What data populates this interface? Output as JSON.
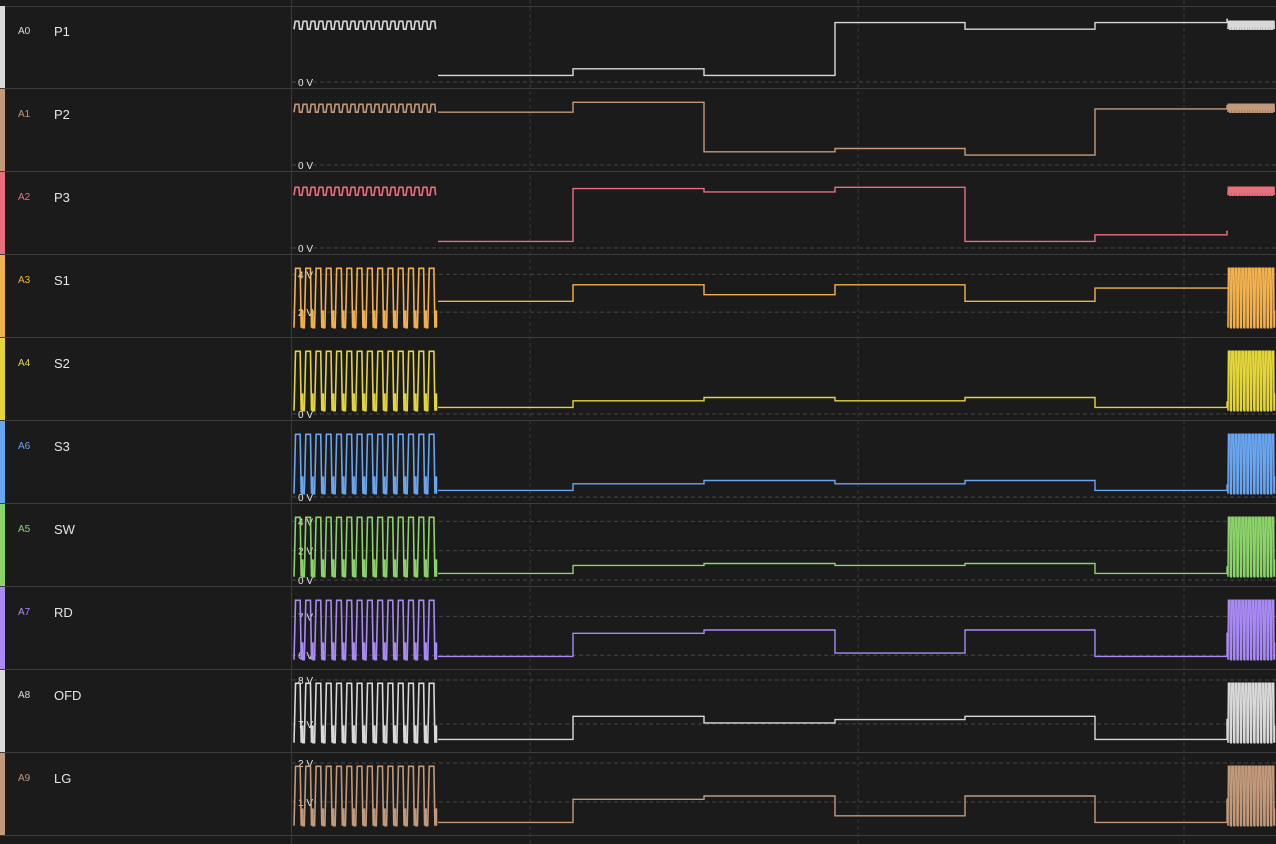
{
  "channels": [
    {
      "id": "A0",
      "name": "P1",
      "color": "#d9d9d9",
      "ticks": [
        {
          "v": 0,
          "label": "0 V"
        }
      ],
      "lo": 0.0,
      "hi": 1.0,
      "burst": "small",
      "lowLevel": -0.2
    },
    {
      "id": "A1",
      "name": "P2",
      "color": "#c29a7b",
      "ticks": [
        {
          "v": 0,
          "label": "0 V"
        }
      ],
      "lo": 0.0,
      "hi": 1.0,
      "burst": "small",
      "lowLevel": 0.0
    },
    {
      "id": "A2",
      "name": "P3",
      "color": "#e8707e",
      "ticks": [
        {
          "v": 0,
          "label": "0 V"
        }
      ],
      "lo": 0.0,
      "hi": 1.0,
      "burst": "small",
      "lowLevel": 0.0
    },
    {
      "id": "A3",
      "name": "S1",
      "color": "#f2b14f",
      "ticks": [
        {
          "v": 4,
          "label": "4 V"
        },
        {
          "v": 2,
          "label": "2 V"
        }
      ],
      "lo": 1.0,
      "hi": 4.5,
      "burst": "big",
      "lowLevel": 2.0
    },
    {
      "id": "A4",
      "name": "S2",
      "color": "#e4d53b",
      "ticks": [
        {
          "v": 0,
          "label": "0 V"
        }
      ],
      "lo": 0.0,
      "hi": 5.0,
      "burst": "big",
      "lowLevel": 0.0
    },
    {
      "id": "A6",
      "name": "S3",
      "color": "#6aa5f0",
      "ticks": [
        {
          "v": 0,
          "label": "0 V"
        }
      ],
      "lo": 0.0,
      "hi": 5.0,
      "burst": "big",
      "lowLevel": 0.0
    },
    {
      "id": "A5",
      "name": "SW",
      "color": "#8cd36a",
      "ticks": [
        {
          "v": 4,
          "label": "4 V"
        },
        {
          "v": 2,
          "label": "2 V"
        },
        {
          "v": 0,
          "label": "0 V"
        }
      ],
      "lo": 0.0,
      "hi": 4.5,
      "burst": "big",
      "lowLevel": 0.0
    },
    {
      "id": "A7",
      "name": "RD",
      "color": "#a98af5",
      "ticks": [
        {
          "v": 7,
          "label": "7 V"
        },
        {
          "v": 6,
          "label": "6 V"
        }
      ],
      "lo": 5.8,
      "hi": 7.5,
      "burst": "big",
      "lowLevel": 5.8
    },
    {
      "id": "A8",
      "name": "OFD",
      "color": "#d9d9d9",
      "ticks": [
        {
          "v": 8,
          "label": "8 V"
        },
        {
          "v": 7,
          "label": "7 V"
        }
      ],
      "lo": 6.5,
      "hi": 8.0,
      "burst": "big",
      "lowLevel": 6.5
    },
    {
      "id": "A9",
      "name": "LG",
      "color": "#c29a7b",
      "ticks": [
        {
          "v": 2,
          "label": "2 V"
        },
        {
          "v": 1,
          "label": "1 V"
        }
      ],
      "lo": 0.3,
      "hi": 2.0,
      "burst": "big",
      "lowLevel": 0.3
    }
  ],
  "colors": {
    "background": "#1b1b1b",
    "grid": "#3a3a3a",
    "rowBorder": "#3d3d3d"
  }
}
